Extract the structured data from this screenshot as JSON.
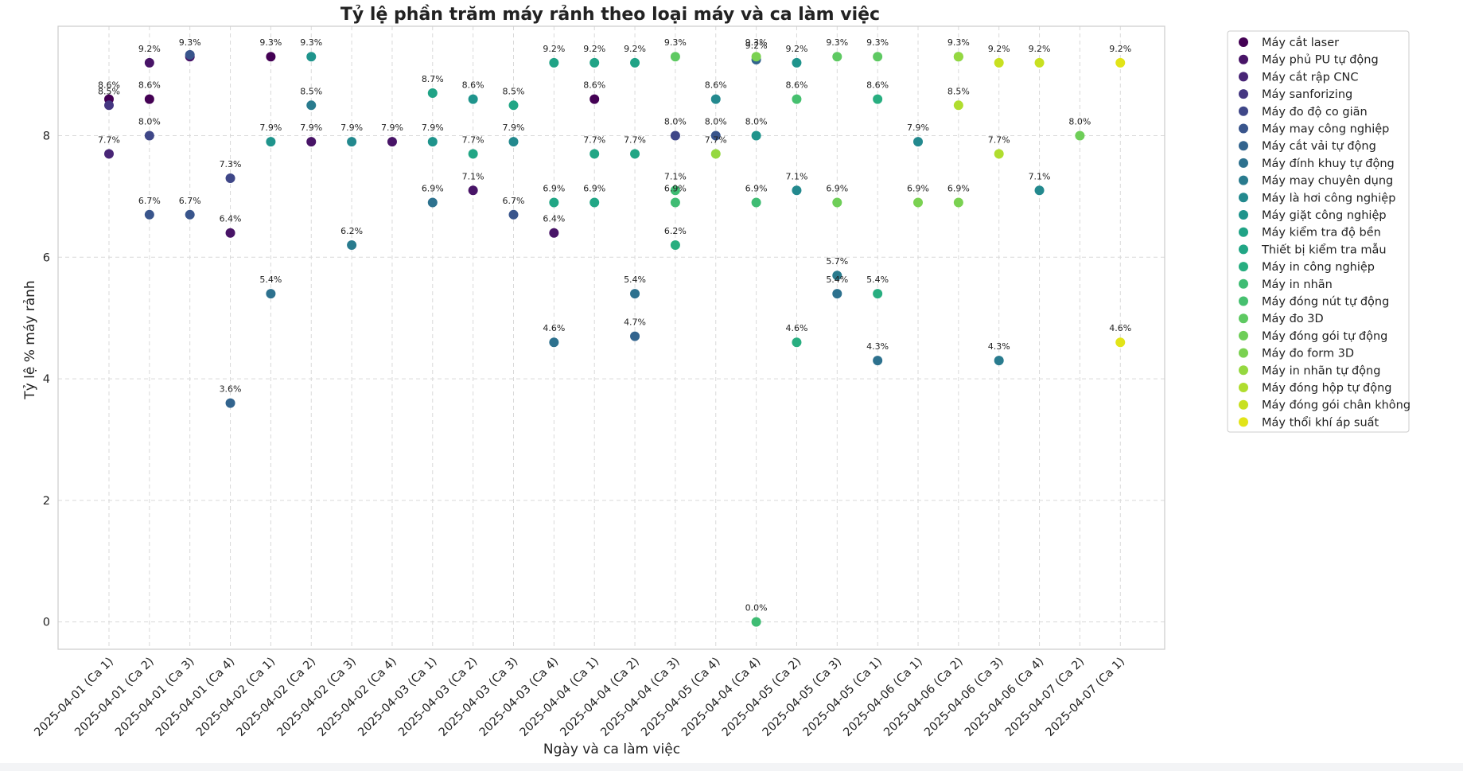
{
  "chart_data": {
    "type": "scatter",
    "title": "Tỷ lệ phần trăm máy rảnh theo loại máy và ca làm việc",
    "xlabel": "Ngày và ca làm việc",
    "ylabel": "Tỷ lệ % máy rảnh",
    "ylim": [
      -0.45,
      9.8
    ],
    "yticks": [
      "0",
      "2",
      "4",
      "6",
      "8"
    ],
    "grid": true,
    "legend_position": "outside-right",
    "categories": [
      "2025-04-01 (Ca 1)",
      "2025-04-01 (Ca 2)",
      "2025-04-01 (Ca 3)",
      "2025-04-01 (Ca 4)",
      "2025-04-02 (Ca 1)",
      "2025-04-02 (Ca 2)",
      "2025-04-02 (Ca 3)",
      "2025-04-02 (Ca 4)",
      "2025-04-03 (Ca 1)",
      "2025-04-03 (Ca 2)",
      "2025-04-03 (Ca 3)",
      "2025-04-03 (Ca 4)",
      "2025-04-04 (Ca 1)",
      "2025-04-04 (Ca 2)",
      "2025-04-04 (Ca 3)",
      "2025-04-05 (Ca 4)",
      "2025-04-04 (Ca 4)",
      "2025-04-05 (Ca 2)",
      "2025-04-05 (Ca 3)",
      "2025-04-05 (Ca 1)",
      "2025-04-06 (Ca 1)",
      "2025-04-06 (Ca 2)",
      "2025-04-06 (Ca 3)",
      "2025-04-06 (Ca 4)",
      "2025-04-07 (Ca 2)",
      "2025-04-07 (Ca 1)"
    ],
    "series": [
      {
        "name": "Máy cắt laser",
        "color": "#440154",
        "points": [
          [
            0,
            8.6,
            "8.6%"
          ],
          [
            1,
            8.6,
            "8.6%"
          ],
          [
            4,
            9.3,
            "9.3%"
          ],
          [
            12,
            8.6,
            "8.6%"
          ]
        ]
      },
      {
        "name": "Máy phủ PU tự động",
        "color": "#481467",
        "points": [
          [
            1,
            9.2,
            "9.2%"
          ],
          [
            2,
            9.3,
            "9.3%"
          ],
          [
            3,
            6.4,
            "6.4%"
          ],
          [
            5,
            7.9,
            "7.9%"
          ],
          [
            7,
            7.9,
            "7.9%"
          ],
          [
            9,
            7.1,
            "7.1%"
          ],
          [
            11,
            6.4,
            "6.4%"
          ]
        ]
      },
      {
        "name": "Máy cắt rập CNC",
        "color": "#482576",
        "points": [
          [
            0,
            7.7,
            "7.7%"
          ]
        ]
      },
      {
        "name": "Máy sanforizing",
        "color": "#453781",
        "points": [
          [
            0,
            8.5,
            "8.5%"
          ]
        ]
      },
      {
        "name": "Máy đo độ co giãn",
        "color": "#3f4788",
        "points": [
          [
            1,
            8.0,
            "8.0%"
          ],
          [
            3,
            7.3,
            "7.3%"
          ],
          [
            14,
            8.0,
            "8.0%"
          ]
        ]
      },
      {
        "name": "Máy may công nghiệp",
        "color": "#39558c",
        "points": [
          [
            1,
            6.7,
            "6.7%"
          ],
          [
            2,
            6.7,
            "6.7%"
          ],
          [
            2,
            9.33,
            ""
          ],
          [
            10,
            6.7,
            "6.7%"
          ],
          [
            15,
            8.0,
            "8.0%"
          ]
        ]
      },
      {
        "name": "Máy cắt vải tự động",
        "color": "#32648e",
        "points": [
          [
            3,
            3.6,
            "3.6%"
          ],
          [
            13,
            4.7,
            "4.7%"
          ],
          [
            16,
            9.25,
            "9.2%"
          ]
        ]
      },
      {
        "name": "Máy đính khuy tự động",
        "color": "#2d718e",
        "points": [
          [
            4,
            5.4,
            "5.4%"
          ],
          [
            8,
            6.9,
            "6.9%"
          ],
          [
            11,
            4.6,
            "4.6%"
          ],
          [
            13,
            5.4,
            "5.4%"
          ],
          [
            18,
            5.4,
            "5.4%"
          ],
          [
            19,
            4.3,
            "4.3%"
          ]
        ]
      },
      {
        "name": "Máy may chuyên dụng",
        "color": "#297b8e",
        "points": [
          [
            5,
            8.5,
            "8.5%"
          ],
          [
            6,
            6.2,
            "6.2%"
          ],
          [
            18,
            5.7,
            "5.7%"
          ],
          [
            22,
            4.3,
            "4.3%"
          ]
        ]
      },
      {
        "name": "Máy là hơi công nghiệp",
        "color": "#23898e",
        "points": [
          [
            6,
            7.9,
            "7.9%"
          ],
          [
            10,
            7.9,
            "7.9%"
          ],
          [
            15,
            8.6,
            "8.6%"
          ],
          [
            17,
            7.1,
            "7.1%"
          ],
          [
            20,
            7.9,
            "7.9%"
          ],
          [
            23,
            7.1,
            "7.1%"
          ]
        ]
      },
      {
        "name": "Máy giặt công nghiệp",
        "color": "#1f948c",
        "points": [
          [
            4,
            7.9,
            "7.9%"
          ],
          [
            5,
            9.3,
            "9.3%"
          ],
          [
            8,
            7.9,
            "7.9%"
          ],
          [
            9,
            8.6,
            "8.6%"
          ],
          [
            16,
            8.0,
            "8.0%"
          ],
          [
            17,
            9.2,
            "9.2%"
          ]
        ]
      },
      {
        "name": "Máy kiểm tra độ bền",
        "color": "#20a386",
        "points": [
          [
            8,
            8.7,
            "8.7%"
          ],
          [
            11,
            9.2,
            "9.2%"
          ],
          [
            12,
            9.2,
            "9.2%"
          ],
          [
            13,
            9.2,
            "9.2%"
          ],
          [
            21,
            9.3,
            "9.3%"
          ]
        ]
      },
      {
        "name": "Thiết bị kiểm tra mẫu",
        "color": "#21a685",
        "points": [
          [
            9,
            7.7,
            "7.7%"
          ],
          [
            10,
            8.5,
            "8.5%"
          ],
          [
            11,
            6.9,
            "6.9%"
          ],
          [
            12,
            7.7,
            "7.7%"
          ],
          [
            13,
            7.7,
            "7.7%"
          ],
          [
            12,
            6.9,
            "6.9%"
          ]
        ]
      },
      {
        "name": "Máy in công nghiệp",
        "color": "#28ae80",
        "points": [
          [
            14,
            6.2,
            "6.2%"
          ],
          [
            17,
            4.6,
            "4.6%"
          ],
          [
            19,
            8.6,
            "8.6%"
          ],
          [
            19,
            5.4,
            "5.4%"
          ]
        ]
      },
      {
        "name": "Máy in nhãn",
        "color": "#3fbc73",
        "points": [
          [
            16,
            0.0,
            "0.0%"
          ],
          [
            14,
            6.9,
            "6.9%"
          ],
          [
            16,
            6.9,
            "6.9%"
          ],
          [
            14,
            7.1,
            "7.1%"
          ]
        ]
      },
      {
        "name": "Máy đóng nút tự động",
        "color": "#46c06f",
        "points": [
          [
            17,
            8.6,
            "8.6%"
          ]
        ]
      },
      {
        "name": "Máy đo 3D",
        "color": "#5ec962",
        "points": [
          [
            14,
            9.3,
            "9.3%"
          ],
          [
            18,
            9.3,
            "9.3%"
          ],
          [
            19,
            9.3,
            "9.3%"
          ]
        ]
      },
      {
        "name": "Máy đóng gói tự động",
        "color": "#6ece58",
        "points": [
          [
            18,
            6.9,
            "6.9%"
          ],
          [
            24,
            8.0,
            "8.0%"
          ]
        ]
      },
      {
        "name": "Máy đo form 3D",
        "color": "#7ad151",
        "points": [
          [
            16,
            9.3,
            "9.3%"
          ],
          [
            20,
            6.9,
            "6.9%"
          ],
          [
            21,
            6.9,
            "6.9%"
          ]
        ]
      },
      {
        "name": "Máy in nhãn tự động",
        "color": "#95d840",
        "points": [
          [
            15,
            7.7,
            "7.7%"
          ],
          [
            21,
            9.3,
            ""
          ]
        ]
      },
      {
        "name": "Máy đóng hộp tự động",
        "color": "#b0dd2f",
        "points": [
          [
            21,
            8.5,
            "8.5%"
          ],
          [
            22,
            7.7,
            "7.7%"
          ]
        ]
      },
      {
        "name": "Máy đóng gói chân không",
        "color": "#c8e020",
        "points": [
          [
            22,
            9.2,
            "9.2%"
          ],
          [
            23,
            9.2,
            "9.2%"
          ]
        ]
      },
      {
        "name": "Máy thổi khí áp suất",
        "color": "#e2e418",
        "points": [
          [
            25,
            9.2,
            "9.2%"
          ],
          [
            25,
            4.6,
            "4.6%"
          ]
        ]
      }
    ]
  }
}
